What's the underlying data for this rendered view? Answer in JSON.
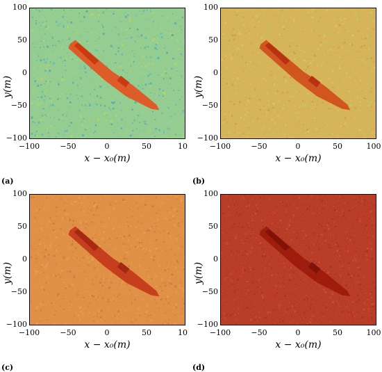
{
  "figure": {
    "panels": [
      {
        "label": "(a)",
        "xlabel": "x − x₀(m)",
        "ylabel": "y(m)",
        "yticks": [
          "100",
          "50",
          "0",
          "−50",
          "−100"
        ],
        "xticks": [
          "−100",
          "−50",
          "0",
          "50",
          "10"
        ],
        "background": "#8fd08a",
        "noise": [
          "#4fb7b0",
          "#b9d85a",
          "#7ec89b",
          "#3aa6b8"
        ],
        "ship_color": "#e6501e",
        "ship_dark": "#c93a10"
      },
      {
        "label": "(b)",
        "xlabel": "x − x₀(m)",
        "ylabel": "y(m)",
        "yticks": [
          "100",
          "50",
          "0",
          "−50",
          "−100"
        ],
        "xticks": [
          "−100",
          "−50",
          "0",
          "50",
          "100"
        ],
        "background": "#d9b44a",
        "noise": [
          "#e8c74d",
          "#c89a3c",
          "#e2a845",
          "#bfcf5a"
        ],
        "ship_color": "#d04a18",
        "ship_dark": "#b73210"
      },
      {
        "label": "(c)",
        "xlabel": "x − x₀(m)",
        "ylabel": "y(m)",
        "yticks": [
          "100",
          "50",
          "0",
          "−50",
          "−100"
        ],
        "xticks": [
          "−100",
          "−50",
          "0",
          "50",
          "10"
        ],
        "background": "#e58a34",
        "noise": [
          "#f0a03c",
          "#d9742c",
          "#ee9a40",
          "#d36a26"
        ],
        "ship_color": "#c2361a",
        "ship_dark": "#a62810"
      },
      {
        "label": "(d)",
        "xlabel": "x − x₀(m)",
        "ylabel": "y(m)",
        "yticks": [
          "100",
          "50",
          "0",
          "−50",
          "−100"
        ],
        "xticks": [
          "−100",
          "−50",
          "0",
          "50",
          "100"
        ],
        "background": "#b82a10",
        "noise": [
          "#c8361a",
          "#a8220c",
          "#d04020",
          "#9e1e0a"
        ],
        "ship_color": "#9c1a0a",
        "ship_dark": "#801208"
      }
    ]
  }
}
